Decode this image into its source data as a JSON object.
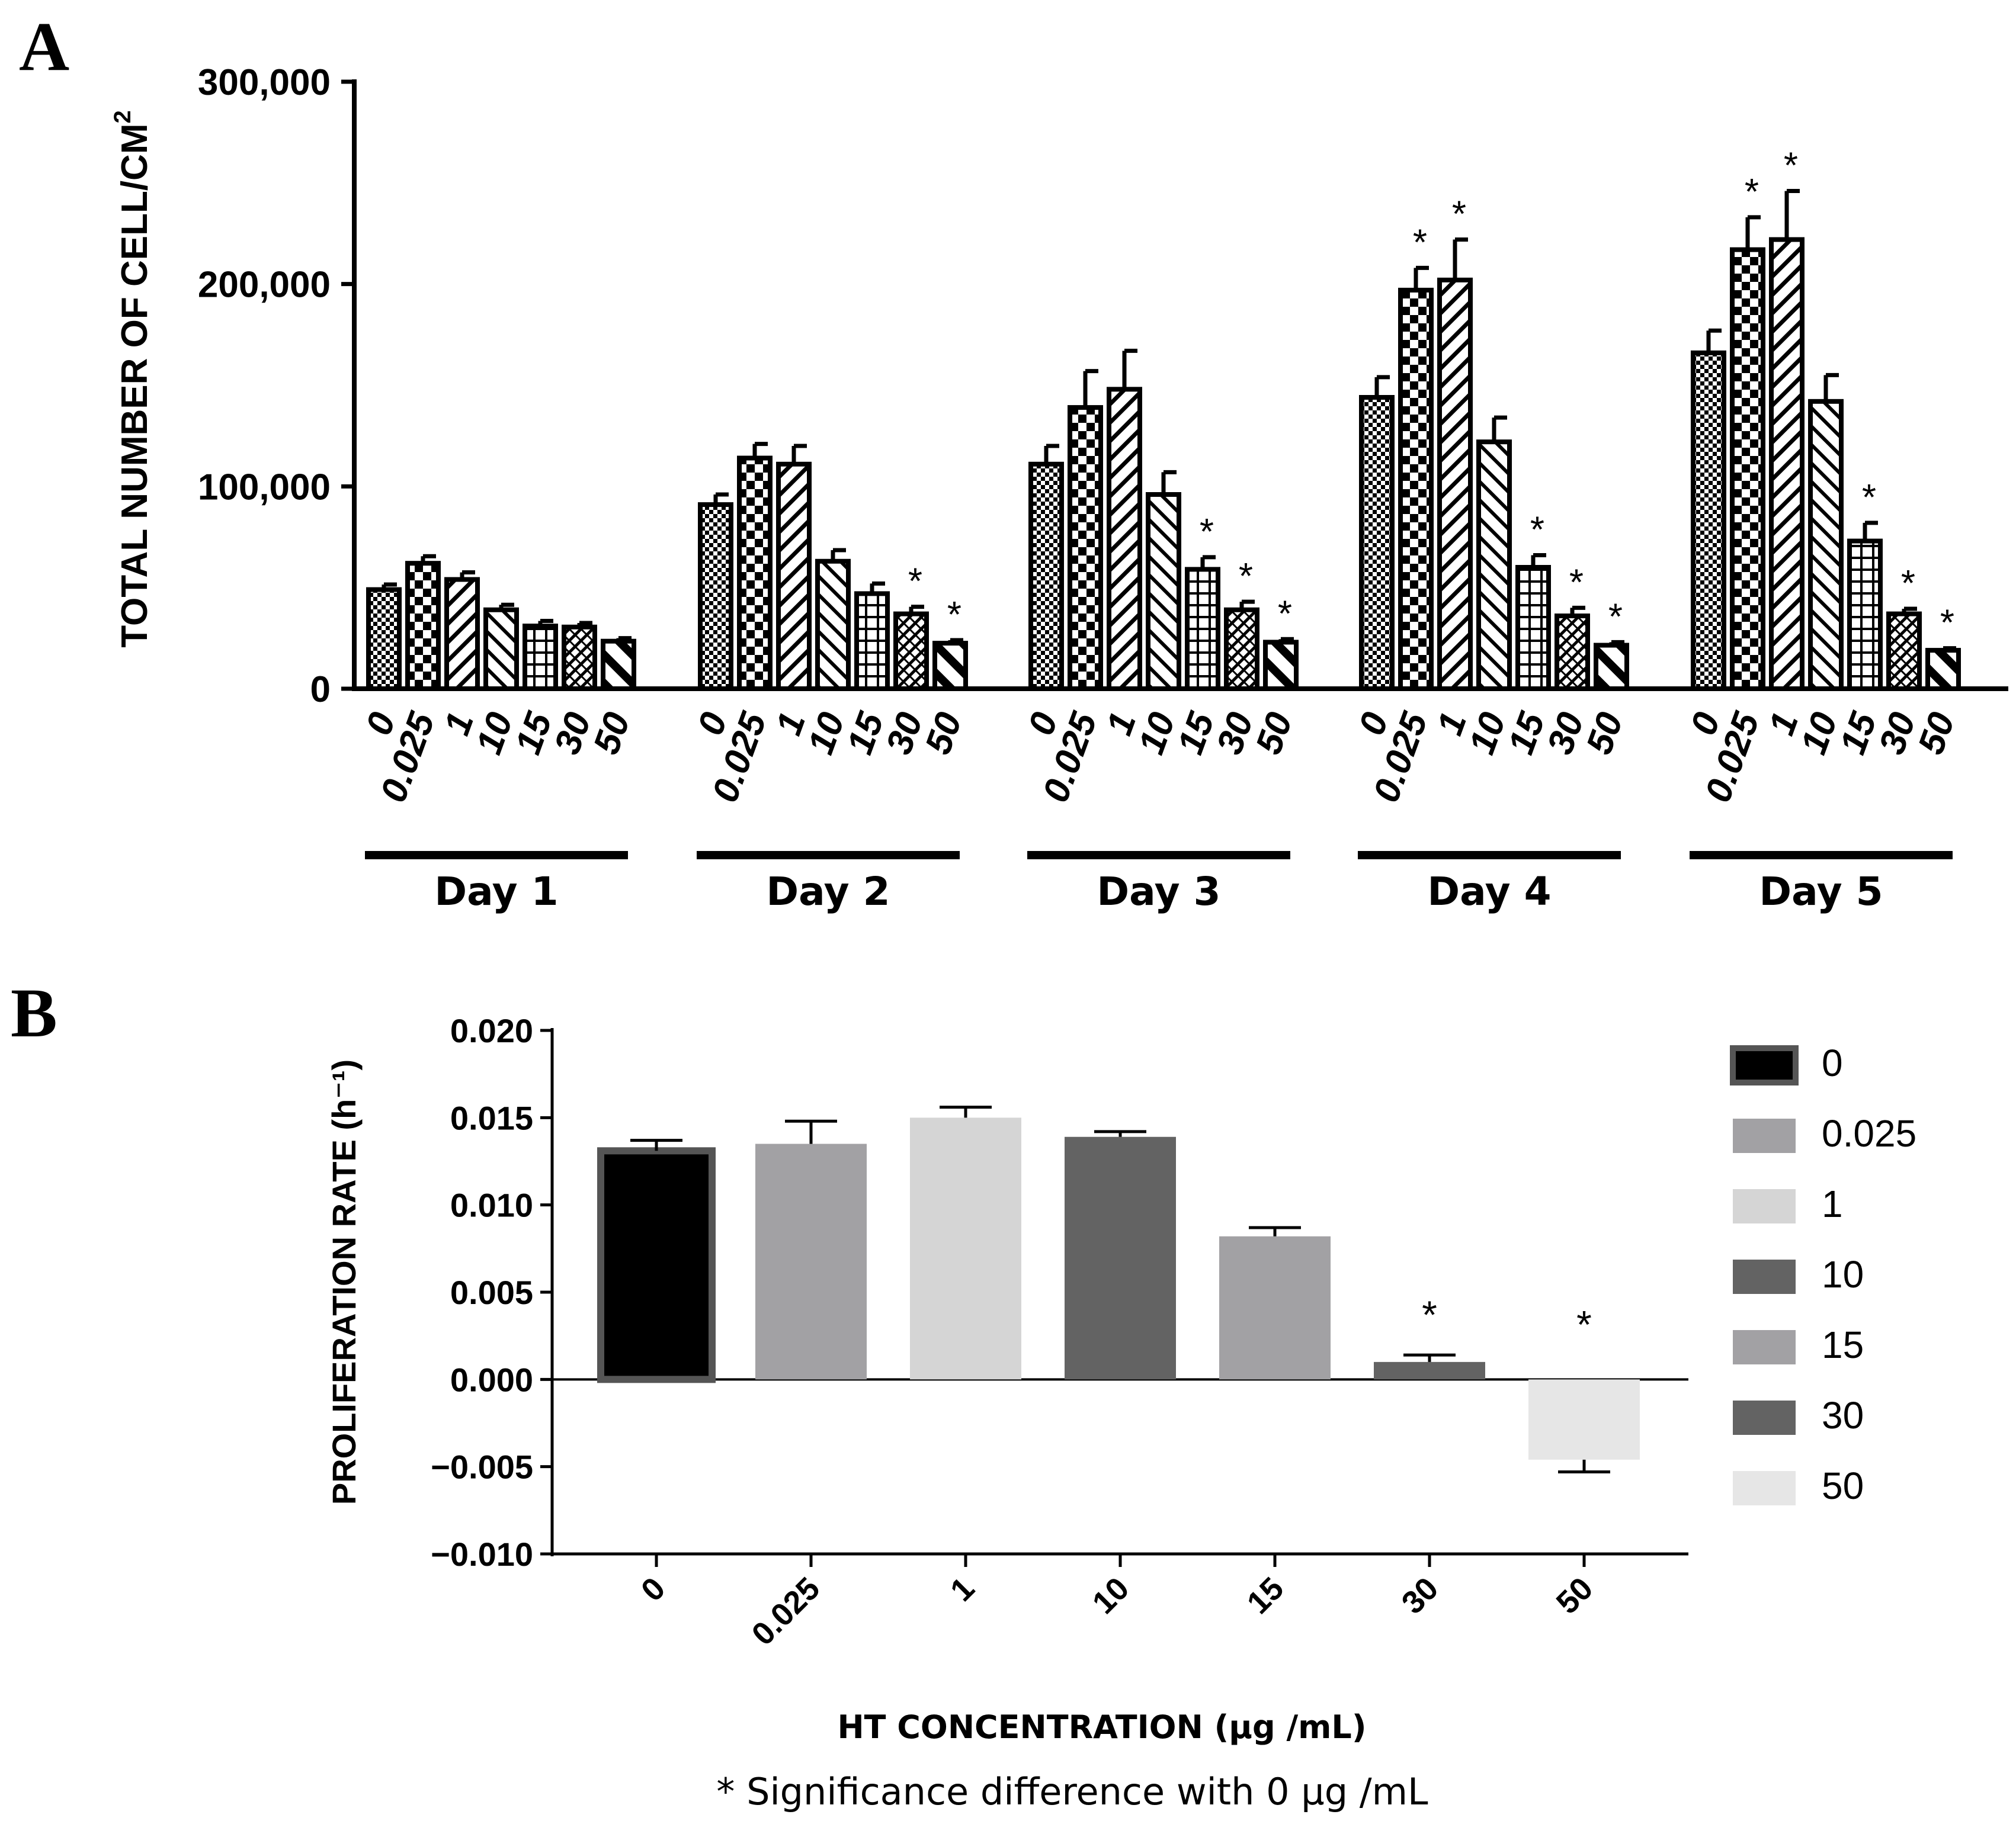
{
  "chart_data": [
    {
      "panel": "A",
      "type": "bar",
      "ylabel": "TOTAL NUMBER OF  CELL/CM",
      "ylabel_sup": "2",
      "ylim": [
        0,
        300000
      ],
      "yticks": [
        0,
        100000,
        200000,
        300000
      ],
      "ytick_labels": [
        "0",
        "100,000",
        "200,000",
        "300,000"
      ],
      "concentrations": [
        "0",
        "0.025",
        "1",
        "10",
        "15",
        "30",
        "50"
      ],
      "groups": [
        {
          "label": "Day 1",
          "values": [
            49000,
            62000,
            54000,
            39000,
            31000,
            30500,
            23500
          ],
          "errors": [
            2500,
            3500,
            3500,
            2500,
            2500,
            2000,
            1500
          ],
          "significant": [
            false,
            false,
            false,
            false,
            false,
            false,
            false
          ]
        },
        {
          "label": "Day 2",
          "values": [
            91000,
            114000,
            111000,
            63000,
            47000,
            37000,
            22500
          ],
          "errors": [
            5000,
            7000,
            9000,
            5500,
            5000,
            3500,
            1500
          ],
          "significant": [
            false,
            false,
            false,
            false,
            false,
            true,
            true
          ]
        },
        {
          "label": "Day 3",
          "values": [
            111000,
            139000,
            148000,
            96000,
            59000,
            39000,
            23000
          ],
          "errors": [
            9000,
            18000,
            19000,
            11000,
            6000,
            4000,
            1500
          ],
          "significant": [
            false,
            false,
            false,
            false,
            true,
            true,
            true
          ]
        },
        {
          "label": "Day 4",
          "values": [
            144000,
            197000,
            202000,
            122000,
            60000,
            36000,
            21500
          ],
          "errors": [
            10000,
            11000,
            20000,
            12000,
            6000,
            4000,
            1500
          ],
          "significant": [
            false,
            true,
            true,
            false,
            true,
            true,
            true
          ]
        },
        {
          "label": "Day 5",
          "values": [
            166000,
            217000,
            222000,
            142000,
            73000,
            37000,
            19000
          ],
          "errors": [
            11000,
            16000,
            24000,
            13000,
            9000,
            2500,
            1000
          ],
          "significant": [
            false,
            true,
            true,
            false,
            true,
            true,
            true
          ]
        }
      ]
    },
    {
      "panel": "B",
      "type": "bar",
      "ylabel": "PROLIFERATION RATE  (h⁻¹)",
      "xlabel": "HT CONCENTRATION (µg /mL)",
      "ylim": [
        -0.01,
        0.02
      ],
      "yticks": [
        -0.01,
        -0.005,
        0,
        0.005,
        0.01,
        0.015,
        0.02
      ],
      "ytick_labels": [
        "−0.010",
        "−0.005",
        "0.000",
        "0.005",
        "0.010",
        "0.015",
        "0.020"
      ],
      "categories": [
        "0",
        "0.025",
        "1",
        "10",
        "15",
        "30",
        "50"
      ],
      "values": [
        0.0131,
        0.0135,
        0.015,
        0.0139,
        0.0082,
        0.001,
        -0.0046
      ],
      "errors": [
        0.0006,
        0.0013,
        0.0006,
        0.0003,
        0.0005,
        0.0004,
        0.0007
      ],
      "significant": [
        false,
        false,
        false,
        false,
        false,
        true,
        true
      ],
      "colors": [
        "#000000",
        "#a2a1a4",
        "#d5d5d5",
        "#636363",
        "#a2a1a4",
        "#636363",
        "#e6e6e6"
      ],
      "legend": {
        "position": "right",
        "labels": [
          "0",
          "0.025",
          "1",
          "10",
          "15",
          "30",
          "50"
        ]
      },
      "footnote": "* Significance difference with 0 µg /mL"
    }
  ],
  "panel_letters": [
    "A",
    "B"
  ],
  "significance_mark": "*"
}
